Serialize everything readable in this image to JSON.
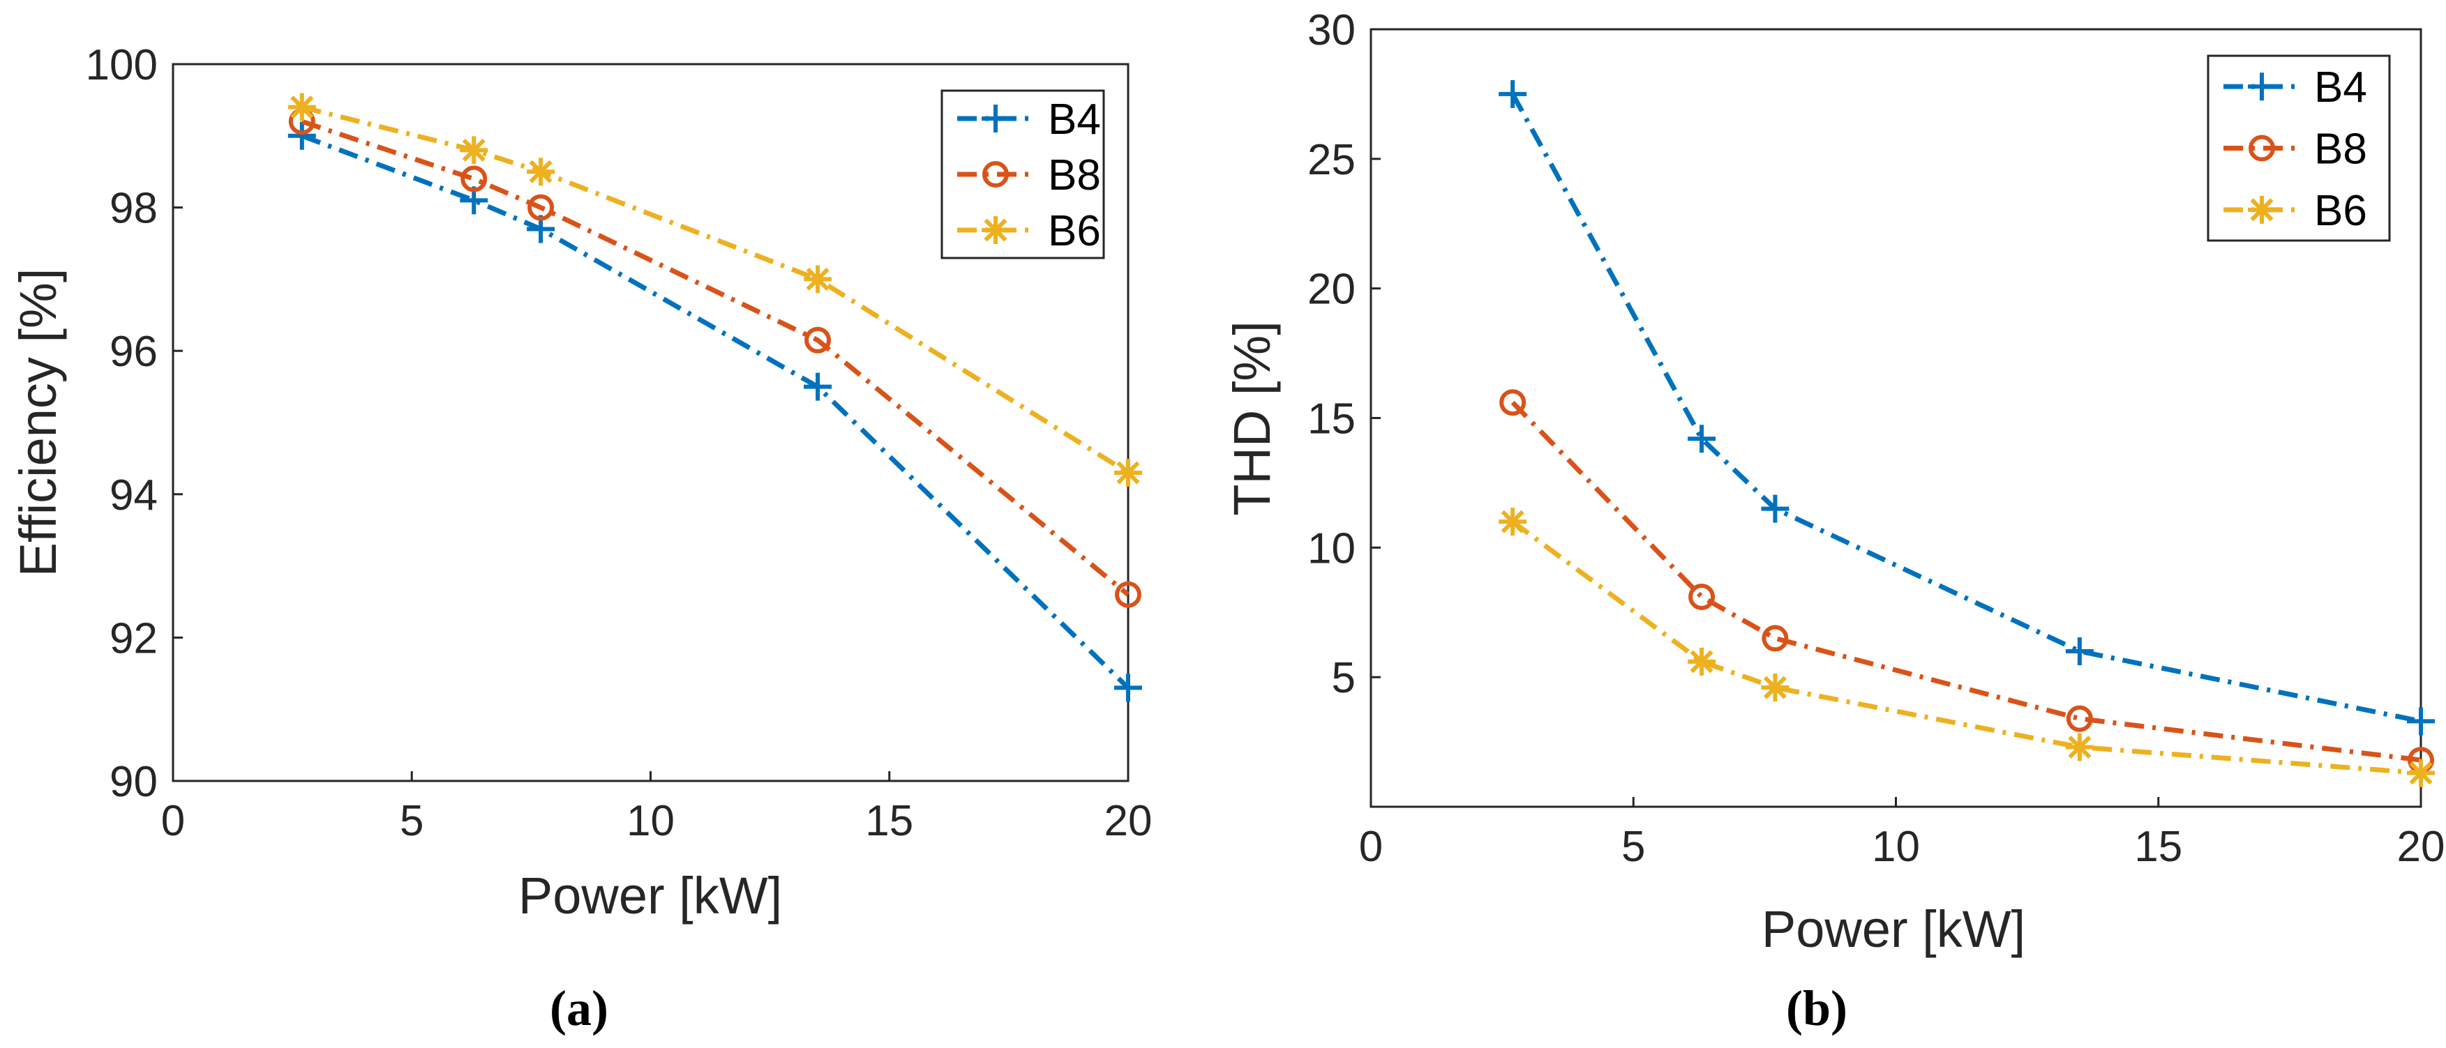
{
  "chart_data": [
    {
      "type": "line",
      "panel": "a",
      "caption": "(a)",
      "xlabel": "Power [kW]",
      "ylabel": "Efficiency [%]",
      "xlim": [
        0,
        20
      ],
      "ylim": [
        90,
        100
      ],
      "xticks": [
        "0",
        "5",
        "10",
        "15",
        "20"
      ],
      "yticks": [
        "90",
        "92",
        "94",
        "96",
        "98",
        "100"
      ],
      "x": [
        2.7,
        6.3,
        7.7,
        13.5,
        20
      ],
      "legend_position": "top-right",
      "series": [
        {
          "name": "B4",
          "color": "#0072BD",
          "marker": "plus",
          "values": [
            99.0,
            98.1,
            97.7,
            95.5,
            91.3
          ]
        },
        {
          "name": "B8",
          "color": "#D95319",
          "marker": "circle",
          "values": [
            99.2,
            98.4,
            98.0,
            96.15,
            92.6
          ]
        },
        {
          "name": "B6",
          "color": "#EDB120",
          "marker": "asterisk",
          "values": [
            99.4,
            98.8,
            98.5,
            97.0,
            94.3
          ]
        }
      ]
    },
    {
      "type": "line",
      "panel": "b",
      "caption": "(b)",
      "xlabel": "Power [kW]",
      "ylabel": "THD [%]",
      "xlim": [
        0,
        20
      ],
      "ylim": [
        0,
        30
      ],
      "xticks": [
        "0",
        "5",
        "10",
        "15",
        "20"
      ],
      "yticks": [
        "5",
        "10",
        "15",
        "20",
        "25",
        "30"
      ],
      "x": [
        2.7,
        6.3,
        7.7,
        13.5,
        20
      ],
      "legend_position": "top-right",
      "series": [
        {
          "name": "B4",
          "color": "#0072BD",
          "marker": "plus",
          "values": [
            27.5,
            14.2,
            11.5,
            6.0,
            3.3
          ]
        },
        {
          "name": "B8",
          "color": "#D95319",
          "marker": "circle",
          "values": [
            15.6,
            8.1,
            6.5,
            3.4,
            1.8
          ]
        },
        {
          "name": "B6",
          "color": "#EDB120",
          "marker": "asterisk",
          "values": [
            11.0,
            5.6,
            4.6,
            2.3,
            1.3
          ]
        }
      ]
    }
  ]
}
